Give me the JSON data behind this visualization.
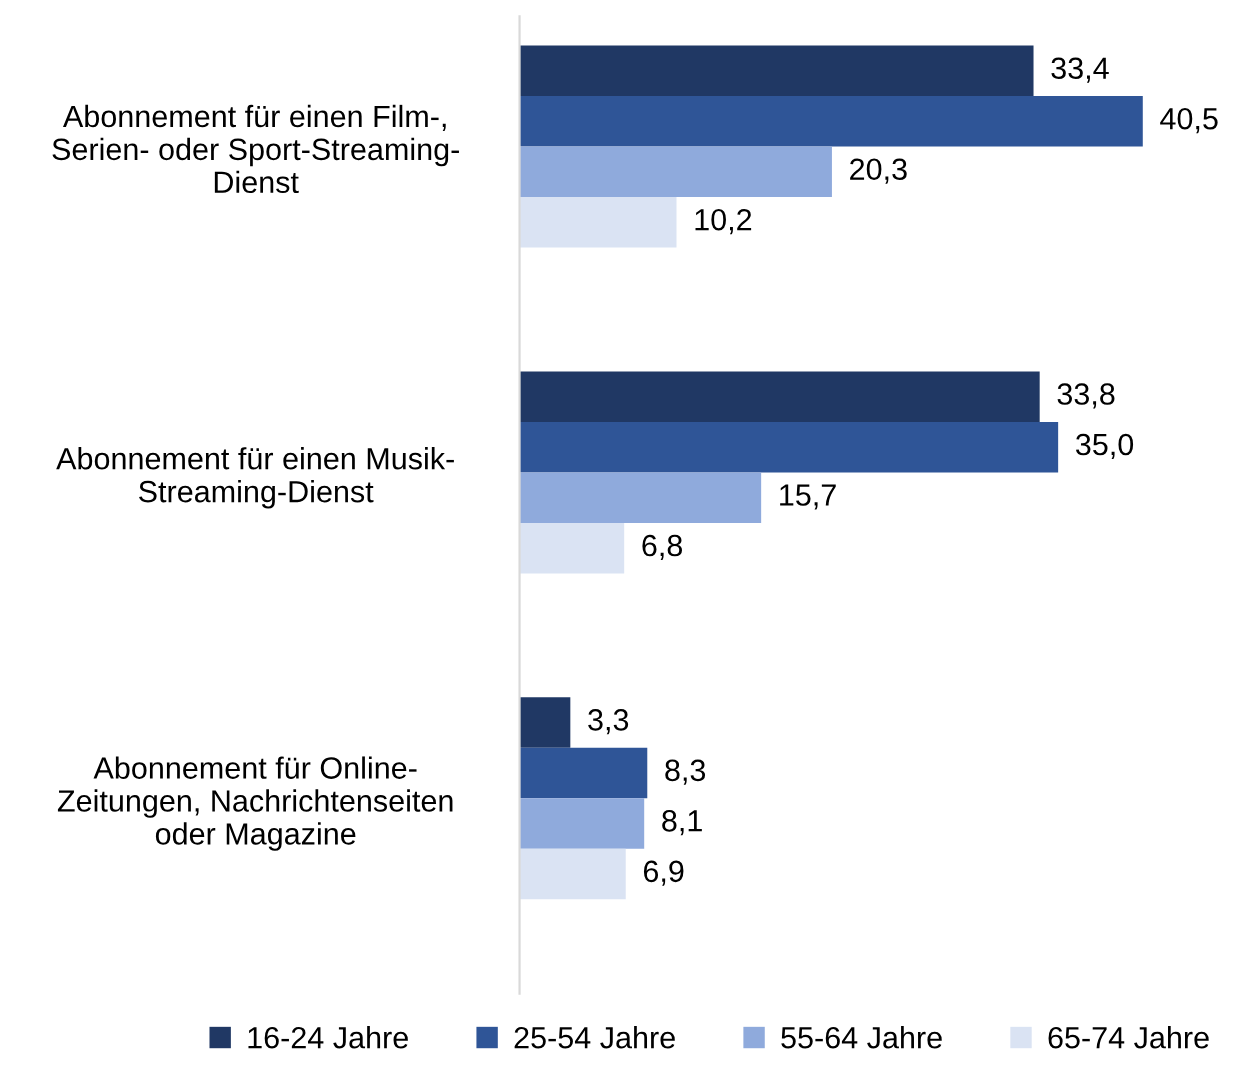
{
  "chart_data": {
    "type": "bar",
    "orientation": "horizontal",
    "categories": [
      "Abonnement für einen Film-,\nSerien- oder Sport-Streaming-\nDienst",
      "Abonnement für einen Musik-\nStreaming-Dienst",
      "Abonnement für Online-\nZeitungen, Nachrichtenseiten\noder Magazine"
    ],
    "series": [
      {
        "name": "16-24 Jahre",
        "color": "#203864",
        "values": [
          33.4,
          33.8,
          3.3
        ],
        "value_labels": [
          "33,4",
          "33,8",
          "3,3"
        ]
      },
      {
        "name": "25-54 Jahre",
        "color": "#2f5597",
        "values": [
          40.5,
          35.0,
          8.3
        ],
        "value_labels": [
          "40,5",
          "35,0",
          "8,3"
        ]
      },
      {
        "name": "55-64 Jahre",
        "color": "#8faadc",
        "values": [
          20.3,
          15.7,
          8.1
        ],
        "value_labels": [
          "20,3",
          "15,7",
          "8,1"
        ]
      },
      {
        "name": "65-74 Jahre",
        "color": "#dae3f3",
        "values": [
          10.2,
          6.8,
          6.9
        ],
        "value_labels": [
          "10,2",
          "6,8",
          "6,9"
        ]
      }
    ],
    "legend": "bottom",
    "grid": false
  }
}
